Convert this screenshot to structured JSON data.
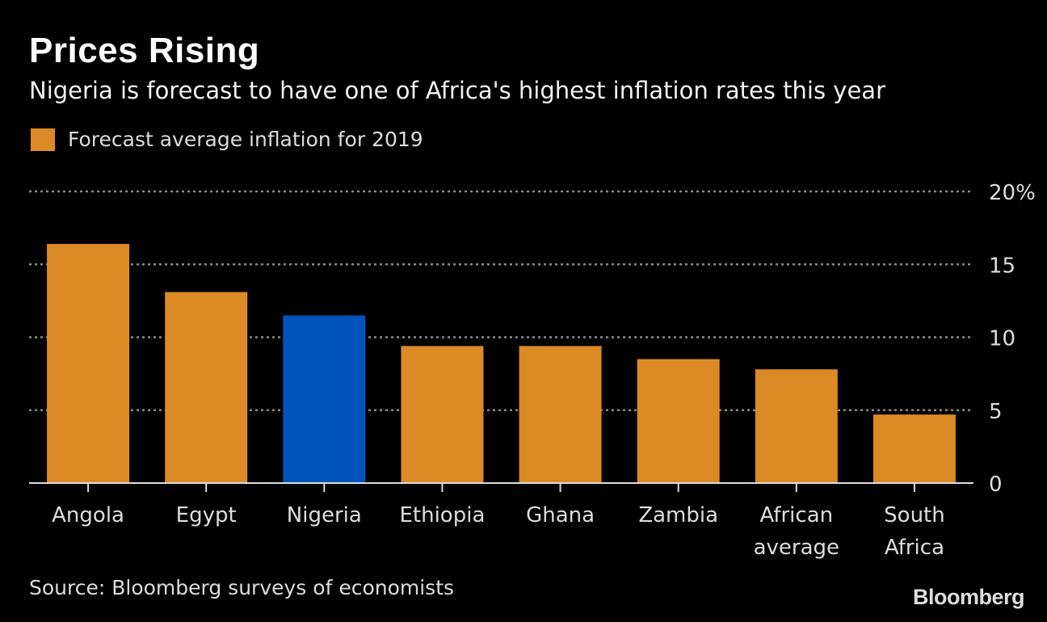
{
  "title": "Prices Rising",
  "subtitle": "Nigeria is forecast to have one of Africa's highest inflation rates this year",
  "source": "Source: Bloomberg surveys of economists",
  "logo": "Bloomberg",
  "colors": {
    "default": "#dc8a26",
    "highlight": "#0053b9",
    "background": "#000000"
  },
  "chart_data": {
    "type": "bar",
    "title": "Prices Rising",
    "legend": [
      {
        "name": "Forecast average inflation for 2019",
        "color": "#dc8a26"
      }
    ],
    "legend_placement": "top-left",
    "categories": [
      [
        "Angola"
      ],
      [
        "Egypt"
      ],
      [
        "Nigeria"
      ],
      [
        "Ethiopia"
      ],
      [
        "Ghana"
      ],
      [
        "Zambia"
      ],
      [
        "African",
        "average"
      ],
      [
        "South",
        "Africa"
      ]
    ],
    "series": [
      {
        "name": "Forecast average inflation for 2019",
        "values": [
          16.4,
          13.1,
          11.5,
          9.4,
          9.4,
          8.5,
          7.8,
          4.7
        ]
      }
    ],
    "highlight_index": 2,
    "ylim": [
      0,
      20
    ],
    "yticks": [
      {
        "value": 0,
        "label": "0"
      },
      {
        "value": 5,
        "label": "5"
      },
      {
        "value": 10,
        "label": "10"
      },
      {
        "value": 15,
        "label": "15"
      },
      {
        "value": 20,
        "label": "20%"
      }
    ],
    "grid": "dotted horizontal",
    "yaxis_side": "right"
  }
}
